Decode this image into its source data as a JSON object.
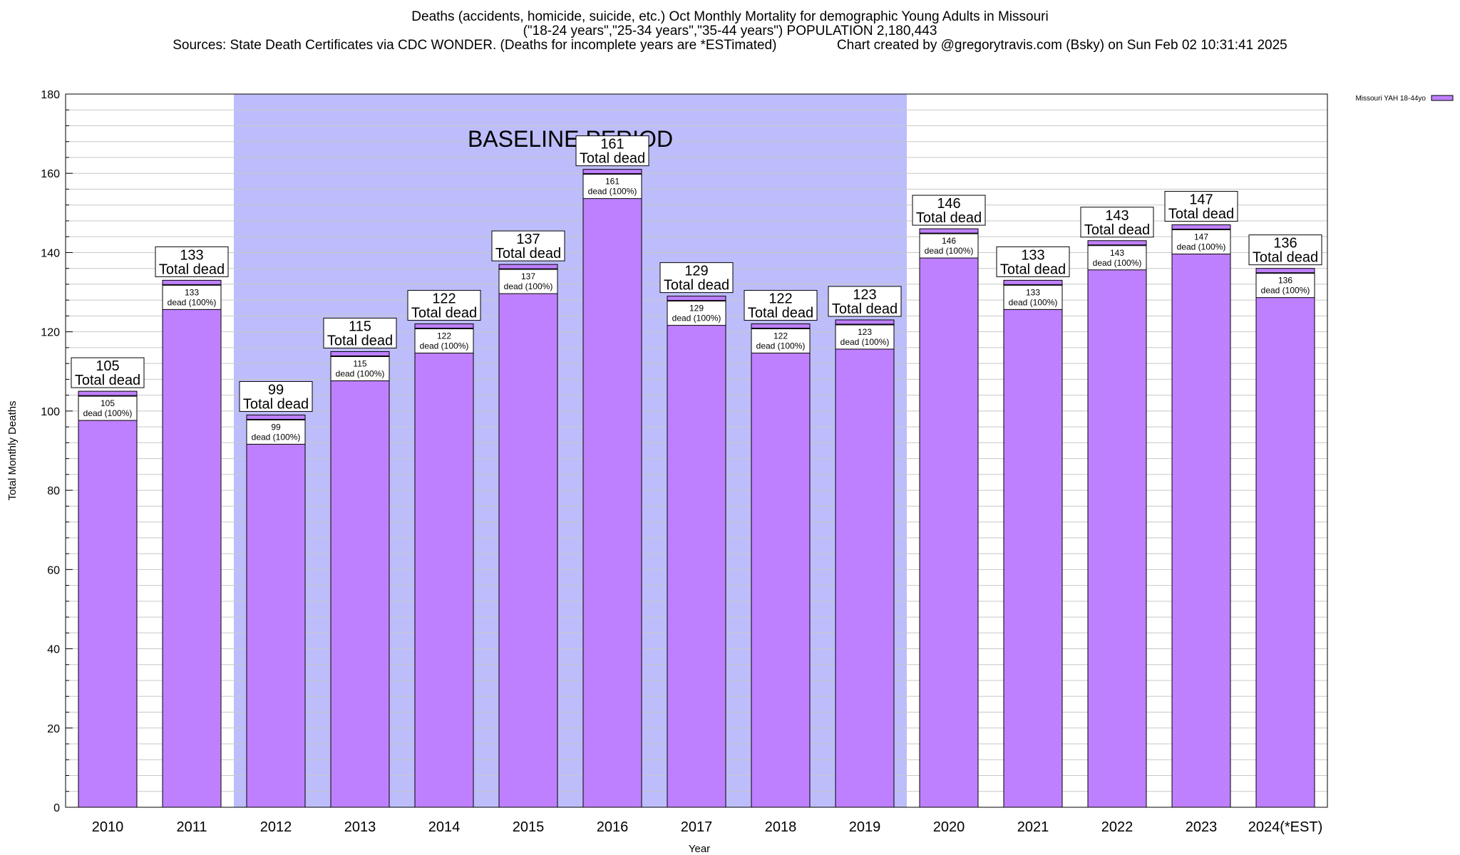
{
  "title": {
    "line1": "Deaths (accidents, homicide, suicide, etc.) Oct Monthly Mortality for demographic Young Adults in Missouri",
    "line2": "(\"18-24 years\",\"25-34 years\",\"35-44 years\") POPULATION 2,180,443",
    "line3": "Sources: State Death Certificates via CDC WONDER. (Deaths for incomplete years are *ESTimated)                Chart created by @gregorytravis.com (Bsky) on Sun Feb 02 10:31:41 2025"
  },
  "colors": {
    "bar": "#bf80ff",
    "baseline_shade": "#bdbdfb",
    "grid": "#c8c8c8"
  },
  "chart_data": {
    "type": "bar",
    "categories": [
      "2010",
      "2011",
      "2012",
      "2013",
      "2014",
      "2015",
      "2016",
      "2017",
      "2018",
      "2019",
      "2020",
      "2021",
      "2022",
      "2023",
      "2024(*EST)"
    ],
    "series": [
      {
        "name": "Missouri YAH 18-44yo",
        "values": [
          105,
          133,
          99,
          115,
          122,
          137,
          161,
          129,
          122,
          123,
          146,
          133,
          143,
          147,
          136
        ]
      }
    ],
    "top_label_suffix": "Total dead",
    "inner_label_suffix": "dead (100%)",
    "xlabel": "Year",
    "ylabel": "Total Monthly Deaths",
    "ylim": [
      0,
      180
    ],
    "yticks": [
      0,
      20,
      40,
      60,
      80,
      100,
      120,
      140,
      160,
      180
    ],
    "grid": true,
    "legend_position": "top-right",
    "baseline_period": {
      "label": "BASELINE PERIOD",
      "from": "2012",
      "to": "2019"
    }
  }
}
